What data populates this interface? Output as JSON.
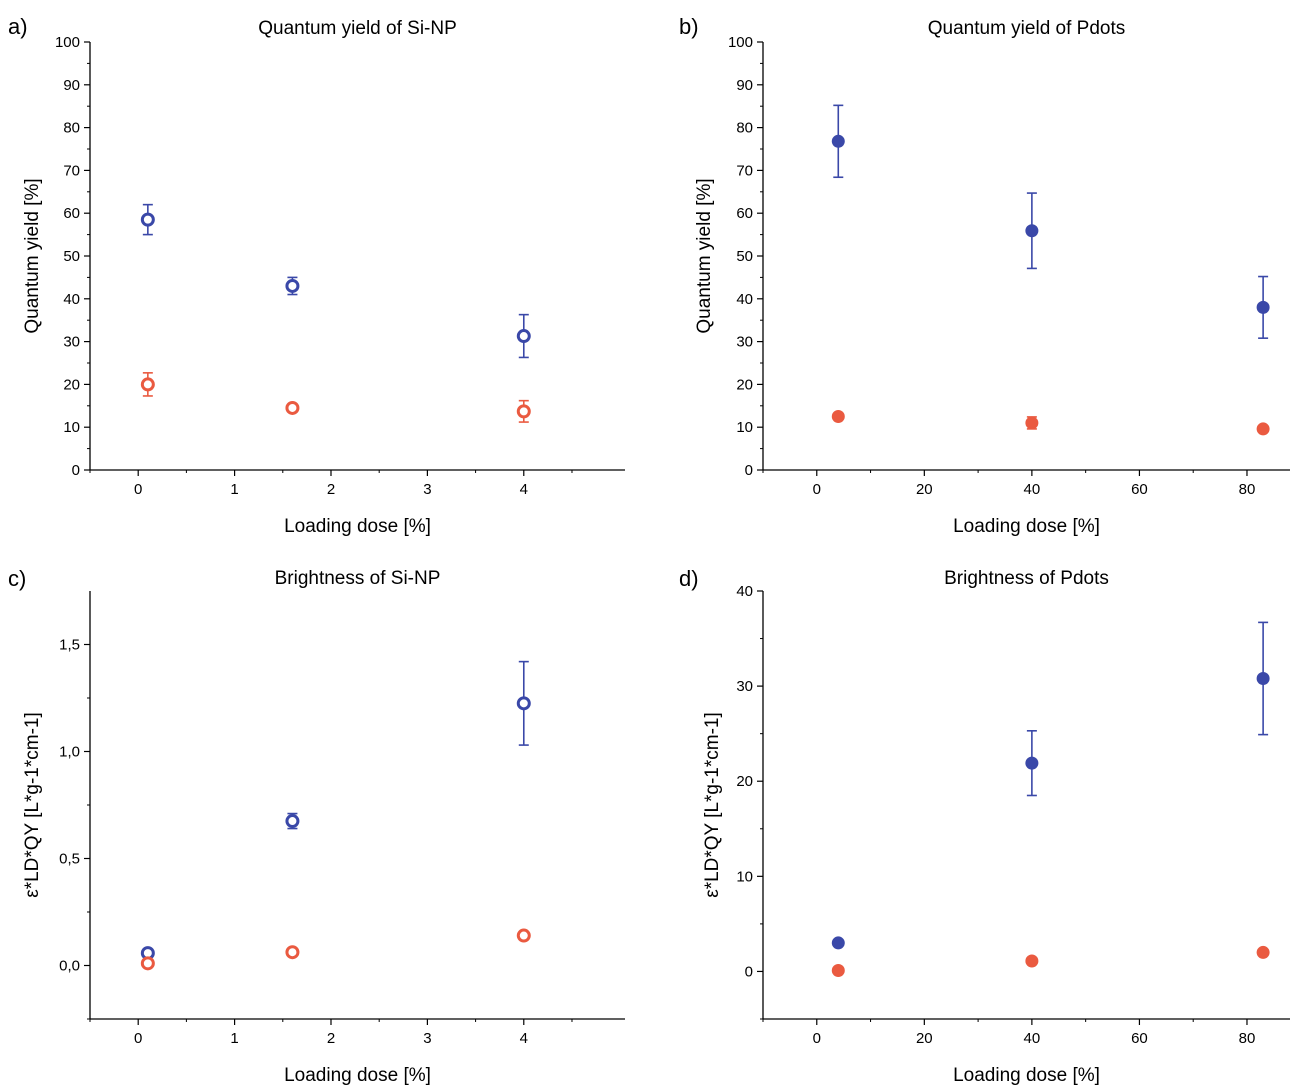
{
  "colors": {
    "blue": "#3a48a8",
    "red": "#ea5a40"
  },
  "chart_data": [
    {
      "type": "scatter",
      "panel_label": "a)",
      "title": "Quantum yield of Si-NP",
      "xlabel": "Loading dose [%]",
      "ylabel": "Quantum yield [%]",
      "xlim": [
        -0.5,
        5.05
      ],
      "ylim": [
        0,
        100
      ],
      "xticks": [
        0,
        1,
        2,
        3,
        4
      ],
      "xtick_labels": [
        "0",
        "1",
        "2",
        "3",
        "4"
      ],
      "xminor": [
        -0.5,
        0.5,
        1.5,
        2.5,
        3.5,
        4.5
      ],
      "yticks": [
        0,
        10,
        20,
        30,
        40,
        50,
        60,
        70,
        80,
        90,
        100
      ],
      "ytick_labels": [
        "0",
        "10",
        "20",
        "30",
        "40",
        "50",
        "60",
        "70",
        "80",
        "90",
        "100"
      ],
      "yminor": [
        5,
        15,
        25,
        35,
        45,
        55,
        65,
        75,
        85,
        95
      ],
      "marker": "open",
      "series": [
        {
          "color": "blue",
          "x": [
            0.1,
            1.6,
            4.0
          ],
          "y": [
            58.5,
            43.0,
            31.3
          ],
          "yerr": [
            3.5,
            2.0,
            5.0
          ]
        },
        {
          "color": "red",
          "x": [
            0.1,
            1.6,
            4.0
          ],
          "y": [
            20.0,
            14.5,
            13.7
          ],
          "yerr": [
            2.7,
            0.8,
            2.5
          ]
        }
      ]
    },
    {
      "type": "scatter",
      "panel_label": "b)",
      "title": "Quantum yield of Pdots",
      "xlabel": "Loading dose [%]",
      "ylabel": "Quantum yield [%]",
      "xlim": [
        -10,
        88
      ],
      "ylim": [
        0,
        100
      ],
      "xticks": [
        0,
        20,
        40,
        60,
        80
      ],
      "xtick_labels": [
        "0",
        "20",
        "40",
        "60",
        "80"
      ],
      "xminor": [
        -10,
        10,
        30,
        50,
        70
      ],
      "yticks": [
        0,
        10,
        20,
        30,
        40,
        50,
        60,
        70,
        80,
        90,
        100
      ],
      "ytick_labels": [
        "0",
        "10",
        "20",
        "30",
        "40",
        "50",
        "60",
        "70",
        "80",
        "90",
        "100"
      ],
      "yminor": [
        5,
        15,
        25,
        35,
        45,
        55,
        65,
        75,
        85,
        95
      ],
      "marker": "filled",
      "series": [
        {
          "color": "blue",
          "x": [
            4,
            40,
            83
          ],
          "y": [
            76.8,
            55.9,
            38.0
          ],
          "yerr": [
            8.4,
            8.8,
            7.2
          ]
        },
        {
          "color": "red",
          "x": [
            4,
            40,
            83
          ],
          "y": [
            12.5,
            11.0,
            9.6
          ],
          "yerr": [
            0.3,
            1.4,
            0.3
          ]
        }
      ]
    },
    {
      "type": "scatter",
      "panel_label": "c)",
      "title": "Brightness of Si-NP",
      "xlabel": "Loading dose [%]",
      "ylabel": "ε*LD*QY [L*g-1*cm-1]",
      "xlim": [
        -0.5,
        5.05
      ],
      "ylim": [
        -0.25,
        1.75
      ],
      "xticks": [
        0,
        1,
        2,
        3,
        4
      ],
      "xtick_labels": [
        "0",
        "1",
        "2",
        "3",
        "4"
      ],
      "xminor": [
        -0.5,
        0.5,
        1.5,
        2.5,
        3.5,
        4.5
      ],
      "yticks": [
        0,
        0.5,
        1.0,
        1.5
      ],
      "ytick_labels": [
        "0,0",
        "0,5",
        "1,0",
        "1,5"
      ],
      "yminor": [
        -0.25,
        0.25,
        0.75,
        1.25
      ],
      "marker": "open",
      "series": [
        {
          "color": "blue",
          "x": [
            0.1,
            1.6,
            4.0
          ],
          "y": [
            0.058,
            0.675,
            1.225
          ],
          "yerr": [
            0.01,
            0.035,
            0.195
          ]
        },
        {
          "color": "red",
          "x": [
            0.1,
            1.6,
            4.0
          ],
          "y": [
            0.01,
            0.062,
            0.14
          ],
          "yerr": [
            0.004,
            0.006,
            0.01
          ]
        }
      ]
    },
    {
      "type": "scatter",
      "panel_label": "d)",
      "title": "Brightness of Pdots",
      "xlabel": "Loading dose [%]",
      "ylabel": "ε*LD*QY [L*g-1*cm-1]",
      "xlim": [
        -10,
        88
      ],
      "ylim": [
        -5,
        40
      ],
      "xticks": [
        0,
        20,
        40,
        60,
        80
      ],
      "xtick_labels": [
        "0",
        "20",
        "40",
        "60",
        "80"
      ],
      "xminor": [
        -10,
        10,
        30,
        50,
        70
      ],
      "yticks": [
        0,
        10,
        20,
        30,
        40
      ],
      "ytick_labels": [
        "0",
        "10",
        "20",
        "30",
        "40"
      ],
      "yminor": [
        -5,
        5,
        15,
        25,
        35
      ],
      "marker": "filled",
      "series": [
        {
          "color": "blue",
          "x": [
            4,
            40,
            83
          ],
          "y": [
            3.0,
            21.9,
            30.8
          ],
          "yerr": [
            0.2,
            3.4,
            5.9
          ]
        },
        {
          "color": "red",
          "x": [
            4,
            40,
            83
          ],
          "y": [
            0.1,
            1.1,
            2.0
          ],
          "yerr": [
            0.1,
            0.2,
            0.2
          ]
        }
      ]
    }
  ]
}
